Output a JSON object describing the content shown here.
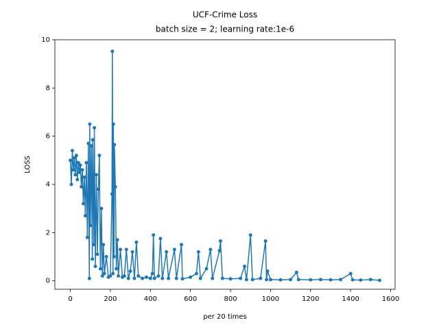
{
  "chart_data": {
    "type": "line",
    "title": "UCF-Crime Loss",
    "subtitle": "batch size = 2; learning rate:1e-6",
    "x_label": "per 20 times",
    "y_label": "LOSS",
    "xlim": [
      -77.25,
      1622.25
    ],
    "ylim": [
      -0.35,
      10
    ],
    "xticks": [
      0,
      200,
      400,
      600,
      800,
      1000,
      1200,
      1400,
      1600
    ],
    "yticks": [
      0,
      2,
      4,
      6,
      8,
      10
    ],
    "x": [
      0,
      5,
      10,
      15,
      20,
      25,
      30,
      35,
      40,
      45,
      50,
      55,
      60,
      65,
      70,
      75,
      80,
      85,
      90,
      95,
      97,
      100,
      105,
      110,
      112,
      118,
      120,
      125,
      130,
      135,
      140,
      145,
      150,
      155,
      160,
      165,
      170,
      180,
      190,
      200,
      208,
      210,
      213,
      215,
      218,
      220,
      225,
      230,
      235,
      240,
      250,
      260,
      270,
      280,
      290,
      300,
      310,
      320,
      330,
      340,
      360,
      380,
      400,
      410,
      415,
      420,
      440,
      450,
      460,
      480,
      490,
      520,
      530,
      555,
      560,
      600,
      630,
      640,
      650,
      680,
      700,
      710,
      745,
      750,
      760,
      800,
      850,
      870,
      880,
      900,
      910,
      950,
      975,
      980,
      985,
      1000,
      1050,
      1100,
      1130,
      1140,
      1200,
      1250,
      1300,
      1350,
      1400,
      1410,
      1450,
      1500,
      1545
    ],
    "series": [
      {
        "name": "loss",
        "color": "#1f77b4",
        "values": [
          5.0,
          4.0,
          5.4,
          4.6,
          5.1,
          4.4,
          5.2,
          4.2,
          4.9,
          4.5,
          4.8,
          3.9,
          4.6,
          3.2,
          4.3,
          2.7,
          4.9,
          1.8,
          5.7,
          0.1,
          6.5,
          2.3,
          5.6,
          0.9,
          5.85,
          1.5,
          6.35,
          0.6,
          4.4,
          1.1,
          3.8,
          5.2,
          0.5,
          3.0,
          0.2,
          1.5,
          0.3,
          1.0,
          0.15,
          0.2,
          3.6,
          9.52,
          0.3,
          6.5,
          1.0,
          5.65,
          3.9,
          0.5,
          1.7,
          0.2,
          1.3,
          0.15,
          0.2,
          1.3,
          0.1,
          0.4,
          1.2,
          0.1,
          1.6,
          0.2,
          0.1,
          0.15,
          0.1,
          0.3,
          1.9,
          0.1,
          0.2,
          1.75,
          0.1,
          1.2,
          0.1,
          1.3,
          0.1,
          1.5,
          0.08,
          0.15,
          0.3,
          1.2,
          0.1,
          0.5,
          1.3,
          0.1,
          1.25,
          1.65,
          0.1,
          0.08,
          0.1,
          0.6,
          0.05,
          1.9,
          0.05,
          0.1,
          1.65,
          0.05,
          0.4,
          0.05,
          0.04,
          0.05,
          0.35,
          0.05,
          0.04,
          0.05,
          0.04,
          0.05,
          0.3,
          0.04,
          0.03,
          0.05,
          0.02
        ]
      }
    ]
  }
}
